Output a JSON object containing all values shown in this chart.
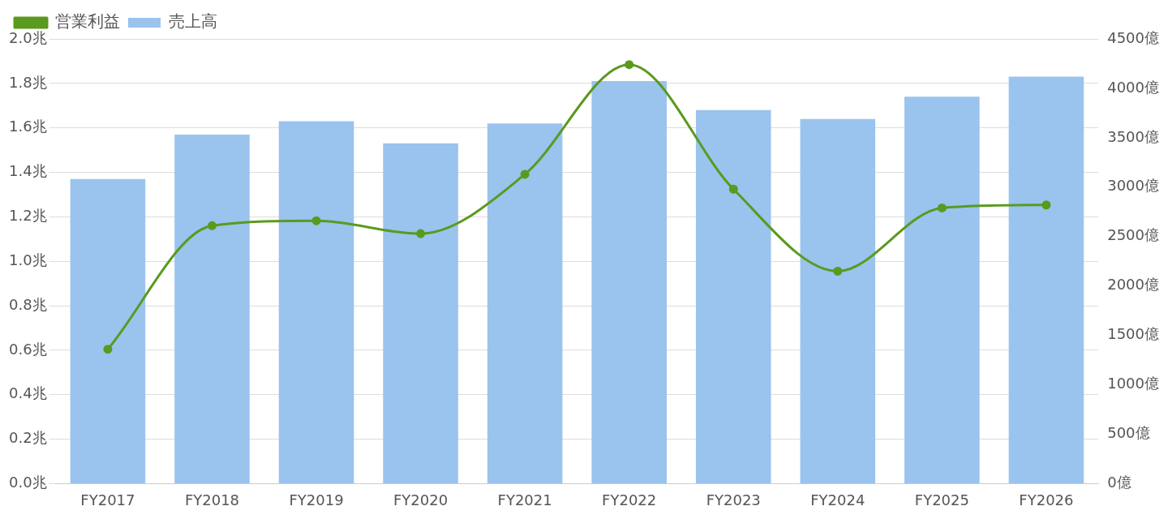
{
  "chart_data": {
    "type": "bar",
    "categories": [
      "FY2017",
      "FY2018",
      "FY2019",
      "FY2020",
      "FY2021",
      "FY2022",
      "FY2023",
      "FY2024",
      "FY2025",
      "FY2026"
    ],
    "series": [
      {
        "name": "営業利益",
        "type": "line",
        "axis": "y2",
        "color": "#5a9a1e",
        "values": [
          1360,
          2610,
          2660,
          2530,
          3130,
          4240,
          2980,
          2150,
          2790,
          2820
        ]
      },
      {
        "name": "売上高",
        "color": "#9ac3ee",
        "values": [
          1.37,
          1.57,
          1.63,
          1.53,
          1.62,
          1.81,
          1.68,
          1.64,
          1.74,
          1.83
        ]
      }
    ],
    "ylim": [
      0,
      2
    ],
    "yticks": [
      {
        "value": 0,
        "label": "0.0兆"
      },
      {
        "value": 0.2,
        "label": "0.2兆"
      },
      {
        "value": 0.4,
        "label": "0.4兆"
      },
      {
        "value": 0.6,
        "label": "0.6兆"
      },
      {
        "value": 0.8,
        "label": "0.8兆"
      },
      {
        "value": 1,
        "label": "1.0兆"
      },
      {
        "value": 1.2,
        "label": "1.2兆"
      },
      {
        "value": 1.4,
        "label": "1.4兆"
      },
      {
        "value": 1.6,
        "label": "1.6兆"
      },
      {
        "value": 1.8,
        "label": "1.8兆"
      },
      {
        "value": 2,
        "label": "2.0兆"
      }
    ],
    "y2lim": [
      0,
      4500
    ],
    "y2ticks": [
      {
        "value": 0,
        "label": "0億"
      },
      {
        "value": 500,
        "label": "500億"
      },
      {
        "value": 1000,
        "label": "1000億"
      },
      {
        "value": 1500,
        "label": "1500億"
      },
      {
        "value": 2000,
        "label": "2000億"
      },
      {
        "value": 2500,
        "label": "2500億"
      },
      {
        "value": 3000,
        "label": "3000億"
      },
      {
        "value": 3500,
        "label": "3500億"
      },
      {
        "value": 4000,
        "label": "4000億"
      },
      {
        "value": 4500,
        "label": "4500億"
      }
    ],
    "grid": "y",
    "legend": "top left",
    "marker": "circle"
  }
}
